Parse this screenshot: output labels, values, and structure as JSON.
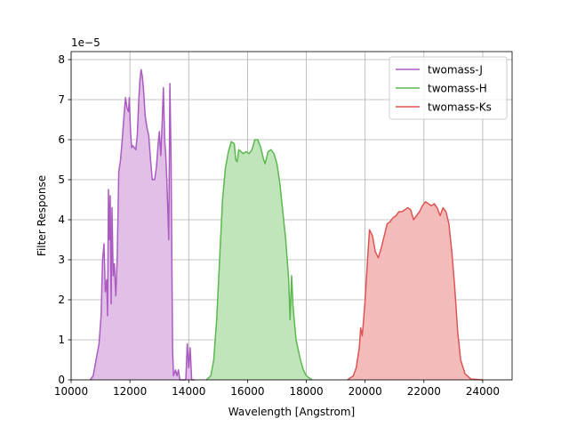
{
  "chart_data": {
    "type": "area",
    "title": "",
    "xlabel": "Wavelength [Angstrom]",
    "ylabel": "Filter Response",
    "y_offset_text": "1e−5",
    "xlim": [
      10000,
      25000
    ],
    "ylim": [
      0,
      8.2
    ],
    "x_ticks": [
      10000,
      12000,
      14000,
      16000,
      18000,
      20000,
      22000,
      24000
    ],
    "y_ticks": [
      0,
      1,
      2,
      3,
      4,
      5,
      6,
      7,
      8
    ],
    "grid": true,
    "legend_position": "top-right",
    "series": [
      {
        "name": "twomass-J",
        "color": "#ab5bc1",
        "fill_color": "#e1bfe6",
        "points": [
          [
            10650,
            0
          ],
          [
            10750,
            0.1
          ],
          [
            10850,
            0.5
          ],
          [
            10950,
            0.9
          ],
          [
            11020,
            1.6
          ],
          [
            11070,
            3.0
          ],
          [
            11120,
            3.4
          ],
          [
            11160,
            2.2
          ],
          [
            11210,
            2.5
          ],
          [
            11240,
            1.6
          ],
          [
            11270,
            4.75
          ],
          [
            11300,
            3.5
          ],
          [
            11330,
            4.6
          ],
          [
            11360,
            1.9
          ],
          [
            11390,
            4.3
          ],
          [
            11430,
            2.6
          ],
          [
            11470,
            2.9
          ],
          [
            11520,
            2.1
          ],
          [
            11570,
            3.1
          ],
          [
            11620,
            5.2
          ],
          [
            11680,
            5.5
          ],
          [
            11740,
            6.0
          ],
          [
            11800,
            6.6
          ],
          [
            11850,
            7.05
          ],
          [
            11900,
            6.8
          ],
          [
            11950,
            6.7
          ],
          [
            11980,
            7.05
          ],
          [
            12020,
            6.2
          ],
          [
            12060,
            5.8
          ],
          [
            12100,
            5.85
          ],
          [
            12150,
            5.8
          ],
          [
            12200,
            5.75
          ],
          [
            12250,
            6.1
          ],
          [
            12300,
            7.0
          ],
          [
            12340,
            7.5
          ],
          [
            12380,
            7.75
          ],
          [
            12420,
            7.6
          ],
          [
            12460,
            7.3
          ],
          [
            12520,
            6.6
          ],
          [
            12580,
            6.3
          ],
          [
            12640,
            6.1
          ],
          [
            12700,
            5.5
          ],
          [
            12760,
            5.0
          ],
          [
            12840,
            5.0
          ],
          [
            12900,
            5.3
          ],
          [
            12960,
            5.9
          ],
          [
            13000,
            6.2
          ],
          [
            13050,
            5.6
          ],
          [
            13100,
            6.5
          ],
          [
            13140,
            7.3
          ],
          [
            13180,
            6.0
          ],
          [
            13220,
            5.6
          ],
          [
            13260,
            4.9
          ],
          [
            13320,
            3.5
          ],
          [
            13360,
            7.4
          ],
          [
            13400,
            5.5
          ],
          [
            13450,
            0.8
          ],
          [
            13480,
            0.1
          ],
          [
            13550,
            0.25
          ],
          [
            13600,
            0.1
          ],
          [
            13650,
            0.25
          ],
          [
            13700,
            0
          ],
          [
            13900,
            0
          ],
          [
            13950,
            0.9
          ],
          [
            14000,
            0.3
          ],
          [
            14050,
            0.8
          ],
          [
            14100,
            0
          ],
          [
            14200,
            0
          ]
        ]
      },
      {
        "name": "twomass-H",
        "color": "#5ab84e",
        "fill_color": "#c1e5bb",
        "points": [
          [
            14600,
            0
          ],
          [
            14750,
            0.1
          ],
          [
            14850,
            0.5
          ],
          [
            14950,
            1.5
          ],
          [
            15050,
            3.0
          ],
          [
            15150,
            4.5
          ],
          [
            15250,
            5.3
          ],
          [
            15350,
            5.7
          ],
          [
            15450,
            5.95
          ],
          [
            15550,
            5.9
          ],
          [
            15600,
            5.5
          ],
          [
            15650,
            5.45
          ],
          [
            15700,
            5.75
          ],
          [
            15780,
            5.7
          ],
          [
            15850,
            5.65
          ],
          [
            15950,
            5.7
          ],
          [
            16050,
            5.65
          ],
          [
            16150,
            5.75
          ],
          [
            16250,
            6.0
          ],
          [
            16350,
            6.0
          ],
          [
            16450,
            5.8
          ],
          [
            16550,
            5.5
          ],
          [
            16600,
            5.4
          ],
          [
            16700,
            5.7
          ],
          [
            16800,
            5.75
          ],
          [
            16900,
            5.65
          ],
          [
            17000,
            5.4
          ],
          [
            17100,
            4.9
          ],
          [
            17200,
            4.2
          ],
          [
            17300,
            3.5
          ],
          [
            17400,
            2.5
          ],
          [
            17450,
            1.5
          ],
          [
            17500,
            2.6
          ],
          [
            17550,
            1.8
          ],
          [
            17650,
            1.0
          ],
          [
            17800,
            0.5
          ],
          [
            17900,
            0.25
          ],
          [
            18000,
            0.1
          ],
          [
            18200,
            0
          ]
        ]
      },
      {
        "name": "twomass-Ks",
        "color": "#de5454",
        "fill_color": "#f3bcbb",
        "points": [
          [
            19400,
            0
          ],
          [
            19600,
            0.1
          ],
          [
            19700,
            0.3
          ],
          [
            19800,
            0.8
          ],
          [
            19850,
            1.3
          ],
          [
            19900,
            1.1
          ],
          [
            19950,
            1.5
          ],
          [
            20000,
            2.0
          ],
          [
            20050,
            2.6
          ],
          [
            20100,
            3.2
          ],
          [
            20150,
            3.75
          ],
          [
            20250,
            3.6
          ],
          [
            20350,
            3.2
          ],
          [
            20450,
            3.05
          ],
          [
            20550,
            3.3
          ],
          [
            20650,
            3.6
          ],
          [
            20750,
            3.9
          ],
          [
            20850,
            3.95
          ],
          [
            20950,
            4.05
          ],
          [
            21050,
            4.1
          ],
          [
            21150,
            4.2
          ],
          [
            21250,
            4.2
          ],
          [
            21350,
            4.25
          ],
          [
            21450,
            4.3
          ],
          [
            21550,
            4.25
          ],
          [
            21650,
            4.0
          ],
          [
            21750,
            4.1
          ],
          [
            21850,
            4.2
          ],
          [
            21950,
            4.35
          ],
          [
            22050,
            4.45
          ],
          [
            22150,
            4.4
          ],
          [
            22250,
            4.35
          ],
          [
            22350,
            4.4
          ],
          [
            22450,
            4.3
          ],
          [
            22550,
            4.1
          ],
          [
            22650,
            4.3
          ],
          [
            22750,
            4.2
          ],
          [
            22850,
            3.9
          ],
          [
            22950,
            3.2
          ],
          [
            23050,
            2.3
          ],
          [
            23150,
            1.2
          ],
          [
            23250,
            0.5
          ],
          [
            23400,
            0.15
          ],
          [
            23600,
            0.02
          ],
          [
            24000,
            0
          ]
        ]
      }
    ]
  }
}
